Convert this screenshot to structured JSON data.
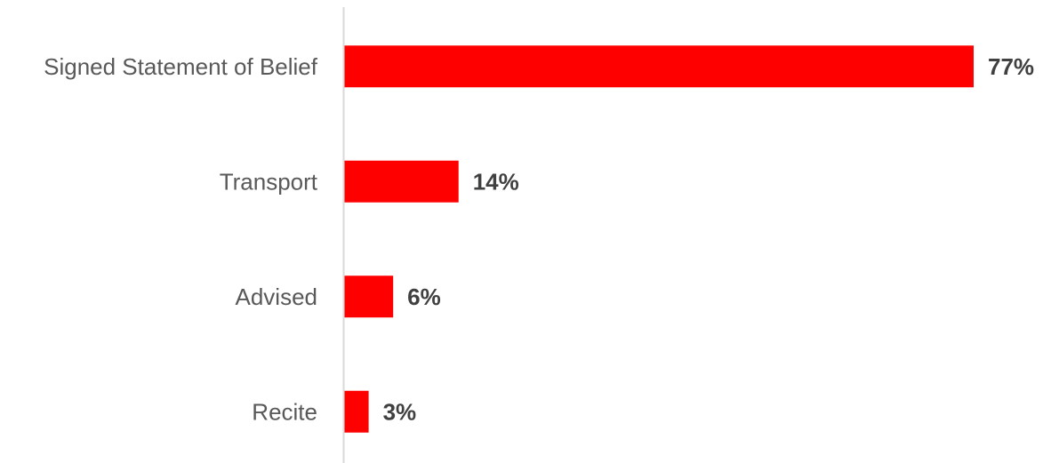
{
  "chart_data": {
    "type": "bar",
    "orientation": "horizontal",
    "categories": [
      "Signed Statement of Belief",
      "Transport",
      "Advised",
      "Recite"
    ],
    "values": [
      77,
      14,
      6,
      3
    ],
    "value_labels": [
      "77%",
      "14%",
      "6%",
      "3%"
    ],
    "unit": "%",
    "title": "",
    "xlabel": "",
    "ylabel": "",
    "xlim": [
      0,
      80
    ],
    "grid": false,
    "legend": "none",
    "colors": {
      "bar": "#ff0000",
      "axis": "#d9d9d9"
    }
  }
}
